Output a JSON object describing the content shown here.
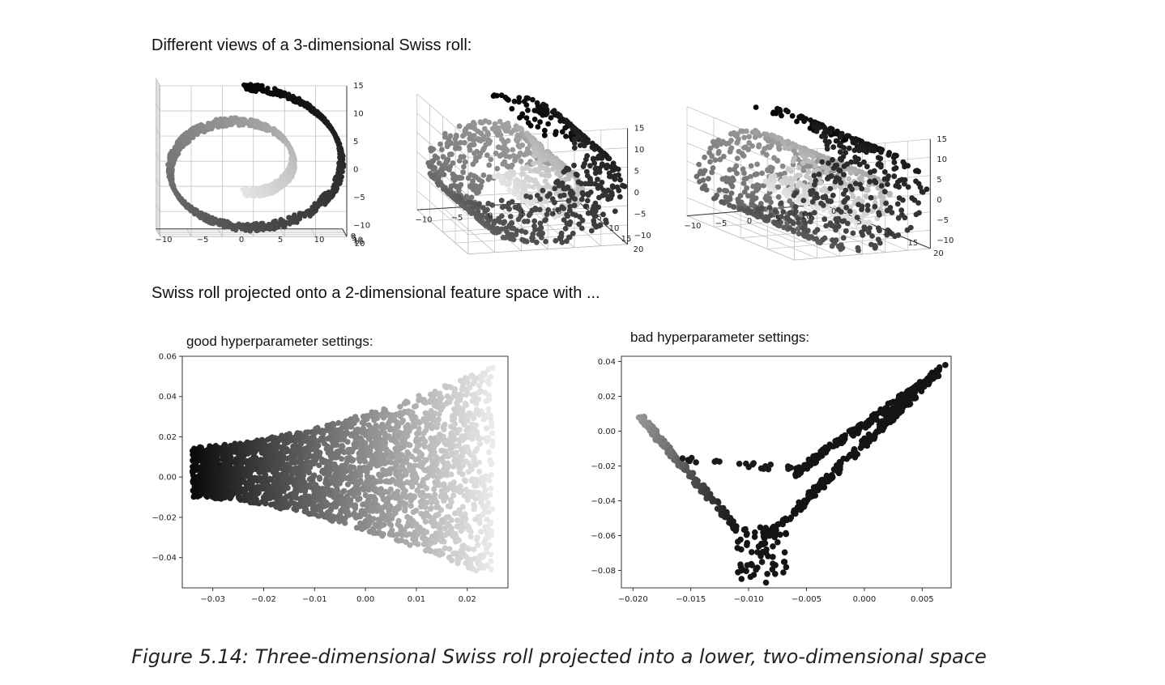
{
  "headings": {
    "top": "Different views of a 3-dimensional Swiss roll:",
    "bottom": "Swiss roll projected onto a 2-dimensional feature space with ..."
  },
  "caption": "Figure 5.14: Three-dimensional Swiss roll projected into a lower, two-dimensional space",
  "chart_data": [
    {
      "type": "scatter",
      "title": "",
      "view": "front",
      "x_ticks": [
        "−10",
        "−5",
        "0",
        "5",
        "10"
      ],
      "z_ticks": [
        "15",
        "10",
        "5",
        "0",
        "−5",
        "−10"
      ],
      "y_ticks": [
        "20",
        "15",
        "10",
        "5",
        "0"
      ],
      "xlim": [
        -11,
        13
      ],
      "zlim": [
        -12,
        15
      ],
      "ylim": [
        0,
        21
      ],
      "color_scale": "grayscale by position along roll (light center to dark outer end)"
    },
    {
      "type": "scatter",
      "title": "",
      "view": "oblique",
      "x_ticks": [
        "−10",
        "−5",
        "0",
        "5",
        "10"
      ],
      "z_ticks": [
        "15",
        "10",
        "5",
        "0",
        "−5",
        "−10"
      ],
      "y_ticks": [
        "0",
        "5",
        "10",
        "15",
        "20"
      ],
      "xlim": [
        -11,
        13
      ],
      "zlim": [
        -12,
        15
      ],
      "ylim": [
        0,
        21
      ]
    },
    {
      "type": "scatter",
      "title": "",
      "view": "side",
      "x_ticks": [
        "−10",
        "−5",
        "0",
        "5",
        "10"
      ],
      "z_ticks": [
        "15",
        "10",
        "5",
        "0",
        "−5",
        "−10"
      ],
      "y_ticks": [
        "0",
        "5",
        "10",
        "15",
        "20"
      ],
      "xlim": [
        -11,
        13
      ],
      "zlim": [
        -12,
        15
      ],
      "ylim": [
        0,
        21
      ]
    },
    {
      "type": "scatter",
      "title": "good hyperparameter settings:",
      "x_ticks": [
        "−0.03",
        "−0.02",
        "−0.01",
        "0.00",
        "0.01",
        "0.02"
      ],
      "y_ticks": [
        "0.06",
        "0.04",
        "0.02",
        "0.00",
        "−0.02",
        "−0.04"
      ],
      "xlim": [
        -0.036,
        0.028
      ],
      "ylim": [
        -0.055,
        0.06
      ],
      "shape": "band widening from x=-0.034 (y -0.01..0.015) to x=0.025 (y -0.05..0.055)",
      "color_scale": "dark on left to light on right"
    },
    {
      "type": "scatter",
      "title": "bad hyperparameter settings:",
      "x_ticks": [
        "−0.020",
        "−0.015",
        "−0.010",
        "−0.005",
        "0.000",
        "0.005"
      ],
      "y_ticks": [
        "0.04",
        "0.02",
        "0.00",
        "−0.02",
        "−0.04",
        "−0.06",
        "−0.08"
      ],
      "xlim": [
        -0.021,
        0.0075
      ],
      "ylim": [
        -0.09,
        0.043
      ],
      "shape": "V-shape: from (-0.0195, 0.009) down to (-0.0085, -0.087), up to (0.007, 0.038)"
    }
  ]
}
